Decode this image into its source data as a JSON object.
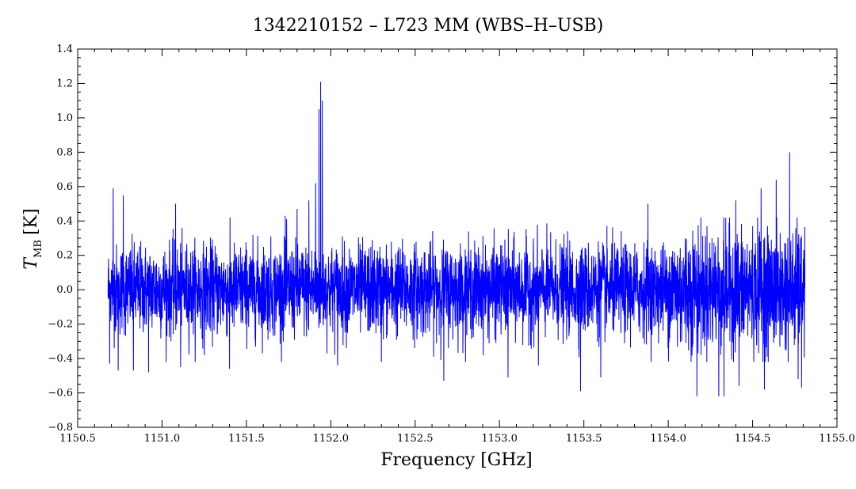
{
  "chart_data": {
    "type": "line",
    "title": "1342210152 – L723 MM (WBS–H–USB)",
    "xlabel": "Frequency [GHz]",
    "ylabel_main": "T",
    "ylabel_sub": "MB",
    "ylabel_unit": "[K]",
    "xlim": [
      1150.5,
      1155.0
    ],
    "ylim": [
      -0.8,
      1.4
    ],
    "xticks": [
      1150.5,
      1151.0,
      1151.5,
      1152.0,
      1152.5,
      1153.0,
      1153.5,
      1154.0,
      1154.5,
      1155.0
    ],
    "xtick_labels": [
      "1150.5",
      "1151.0",
      "1151.5",
      "1152.0",
      "1152.5",
      "1153.0",
      "1153.5",
      "1154.0",
      "1154.5",
      "1155.0"
    ],
    "yticks": [
      -0.8,
      -0.6,
      -0.4,
      -0.2,
      0.0,
      0.2,
      0.4,
      0.6,
      0.8,
      1.0,
      1.2,
      1.4
    ],
    "ytick_labels": [
      "−0.8",
      "−0.6",
      "−0.4",
      "−0.2",
      "0.0",
      "0.2",
      "0.4",
      "0.6",
      "0.8",
      "1.0",
      "1.2",
      "1.4"
    ],
    "grid": false,
    "series": [
      {
        "color": "#0000ff",
        "x_start": 1150.68,
        "x_end": 1154.81,
        "baseline_rms": 0.13,
        "spikes": [
          {
            "x": 1150.69,
            "y": -0.43
          },
          {
            "x": 1150.71,
            "y": 0.59
          },
          {
            "x": 1150.74,
            "y": -0.47
          },
          {
            "x": 1150.77,
            "y": 0.55
          },
          {
            "x": 1150.83,
            "y": -0.47
          },
          {
            "x": 1150.92,
            "y": -0.48
          },
          {
            "x": 1151.08,
            "y": 0.5
          },
          {
            "x": 1151.11,
            "y": -0.45
          },
          {
            "x": 1151.25,
            "y": -0.38
          },
          {
            "x": 1151.4,
            "y": -0.46
          },
          {
            "x": 1151.73,
            "y": 0.43
          },
          {
            "x": 1151.8,
            "y": 0.47
          },
          {
            "x": 1151.87,
            "y": 0.52
          },
          {
            "x": 1151.91,
            "y": 0.62
          },
          {
            "x": 1151.93,
            "y": 1.05
          },
          {
            "x": 1151.94,
            "y": 1.21
          },
          {
            "x": 1151.95,
            "y": 1.1
          },
          {
            "x": 1152.04,
            "y": -0.44
          },
          {
            "x": 1152.3,
            "y": -0.42
          },
          {
            "x": 1152.67,
            "y": -0.53
          },
          {
            "x": 1153.05,
            "y": -0.51
          },
          {
            "x": 1153.23,
            "y": -0.44
          },
          {
            "x": 1153.48,
            "y": -0.59
          },
          {
            "x": 1153.6,
            "y": -0.51
          },
          {
            "x": 1153.88,
            "y": 0.5
          },
          {
            "x": 1154.17,
            "y": -0.62
          },
          {
            "x": 1154.3,
            "y": -0.62
          },
          {
            "x": 1154.33,
            "y": -0.62
          },
          {
            "x": 1154.4,
            "y": 0.52
          },
          {
            "x": 1154.42,
            "y": -0.56
          },
          {
            "x": 1154.55,
            "y": 0.59
          },
          {
            "x": 1154.57,
            "y": -0.58
          },
          {
            "x": 1154.64,
            "y": 0.64
          },
          {
            "x": 1154.72,
            "y": 0.8
          },
          {
            "x": 1154.77,
            "y": -0.52
          },
          {
            "x": 1154.79,
            "y": -0.57
          }
        ]
      }
    ]
  }
}
